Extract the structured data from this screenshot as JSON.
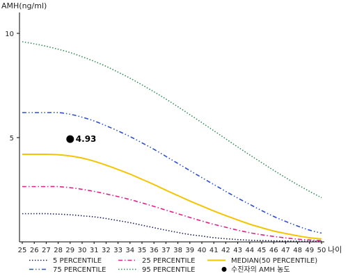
{
  "chart_data": {
    "type": "line",
    "ylabel": "AMH(ng/ml)",
    "xlabel": "나이",
    "x_range": [
      25,
      50
    ],
    "ylim": [
      0,
      11
    ],
    "y_ticks": [
      5,
      10
    ],
    "x": [
      25,
      26,
      27,
      28,
      29,
      30,
      31,
      32,
      33,
      34,
      35,
      36,
      37,
      38,
      39,
      40,
      41,
      42,
      43,
      44,
      45,
      46,
      47,
      48,
      49,
      50
    ],
    "series": [
      {
        "name": "5 PERCENTILE",
        "color": "#1a1a5e",
        "dash": "dot",
        "values": [
          1.35,
          1.35,
          1.35,
          1.33,
          1.3,
          1.25,
          1.2,
          1.12,
          1.02,
          0.92,
          0.8,
          0.68,
          0.56,
          0.45,
          0.35,
          0.28,
          0.2,
          0.15,
          0.11,
          0.08,
          0.06,
          0.05,
          0.04,
          0.03,
          0.03,
          0.03
        ]
      },
      {
        "name": "25 PERCENTILE",
        "color": "#e0218a",
        "dash": "dashdot",
        "values": [
          2.65,
          2.65,
          2.65,
          2.65,
          2.6,
          2.52,
          2.42,
          2.3,
          2.17,
          2.03,
          1.87,
          1.7,
          1.52,
          1.35,
          1.17,
          1.0,
          0.84,
          0.7,
          0.56,
          0.44,
          0.34,
          0.26,
          0.19,
          0.13,
          0.09,
          0.06
        ]
      },
      {
        "name": "MEDIAN(50 PERCENTILE)",
        "color": "#f5c400",
        "dash": "solid",
        "values": [
          4.2,
          4.2,
          4.2,
          4.18,
          4.12,
          4.02,
          3.87,
          3.68,
          3.47,
          3.25,
          3.0,
          2.75,
          2.48,
          2.22,
          1.96,
          1.72,
          1.48,
          1.26,
          1.05,
          0.85,
          0.68,
          0.52,
          0.4,
          0.29,
          0.2,
          0.14
        ]
      },
      {
        "name": "75 PERCENTILE",
        "color": "#2a4fd0",
        "dash": "dashdotdot",
        "values": [
          6.2,
          6.2,
          6.2,
          6.2,
          6.12,
          5.98,
          5.8,
          5.57,
          5.32,
          5.05,
          4.75,
          4.44,
          4.1,
          3.76,
          3.42,
          3.08,
          2.75,
          2.42,
          2.1,
          1.8,
          1.5,
          1.22,
          0.98,
          0.76,
          0.56,
          0.42
        ]
      },
      {
        "name": "95 PERCENTILE",
        "color": "#2e8b57",
        "dash": "dot",
        "values": [
          9.6,
          9.5,
          9.38,
          9.24,
          9.08,
          8.88,
          8.66,
          8.42,
          8.14,
          7.85,
          7.53,
          7.2,
          6.85,
          6.48,
          6.1,
          5.72,
          5.33,
          4.94,
          4.55,
          4.17,
          3.8,
          3.43,
          3.08,
          2.74,
          2.42,
          2.12
        ]
      }
    ],
    "highlight_point": {
      "name": "수진자의 AMH 농도",
      "x": 29,
      "y": 4.93,
      "label": "4.93",
      "color": "#000000"
    },
    "legend": {
      "placement": "bottom",
      "order": [
        "5 PERCENTILE",
        "25 PERCENTILE",
        "MEDIAN(50 PERCENTILE)",
        "75 PERCENTILE",
        "95 PERCENTILE",
        "수진자의 AMH 농도"
      ]
    },
    "grid": false
  }
}
